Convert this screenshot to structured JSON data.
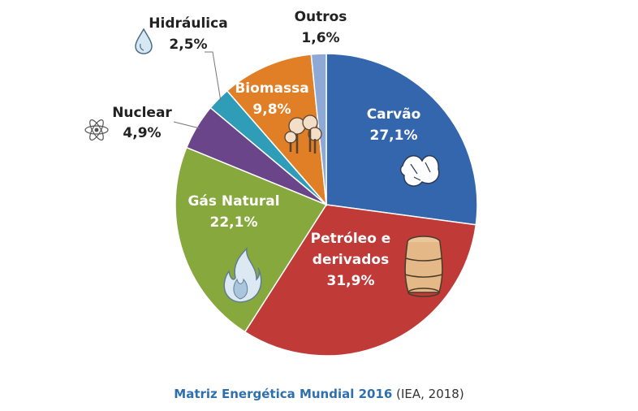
{
  "chart_data": {
    "type": "pie",
    "title": "Matriz Energética Mundial 2016",
    "source": "(IEA, 2018)",
    "slices": [
      {
        "label": "Carvão",
        "value": 27.1,
        "value_text": "27,1%",
        "color": "#3466AE",
        "icon": "coal-icon"
      },
      {
        "label": "Petróleo e derivados",
        "label_lines": [
          "Petróleo e",
          "derivados"
        ],
        "value": 31.9,
        "value_text": "31,9%",
        "color": "#C03A38",
        "icon": "oil-barrel-icon"
      },
      {
        "label": "Gás Natural",
        "value": 22.1,
        "value_text": "22,1%",
        "color": "#87A83C",
        "icon": "flame-icon"
      },
      {
        "label": "Nuclear",
        "value": 4.9,
        "value_text": "4,9%",
        "color": "#6A4589",
        "icon": "atom-icon"
      },
      {
        "label": "Hidráulica",
        "value": 2.5,
        "value_text": "2,5%",
        "color": "#2F9DB8",
        "icon": "water-drop-icon"
      },
      {
        "label": "Biomassa",
        "value": 9.8,
        "value_text": "9,8%",
        "color": "#E07F26",
        "icon": "trees-icon"
      },
      {
        "label": "Outros",
        "value": 1.6,
        "value_text": "1,6%",
        "color": "#8FA9D6",
        "icon": ""
      }
    ]
  }
}
